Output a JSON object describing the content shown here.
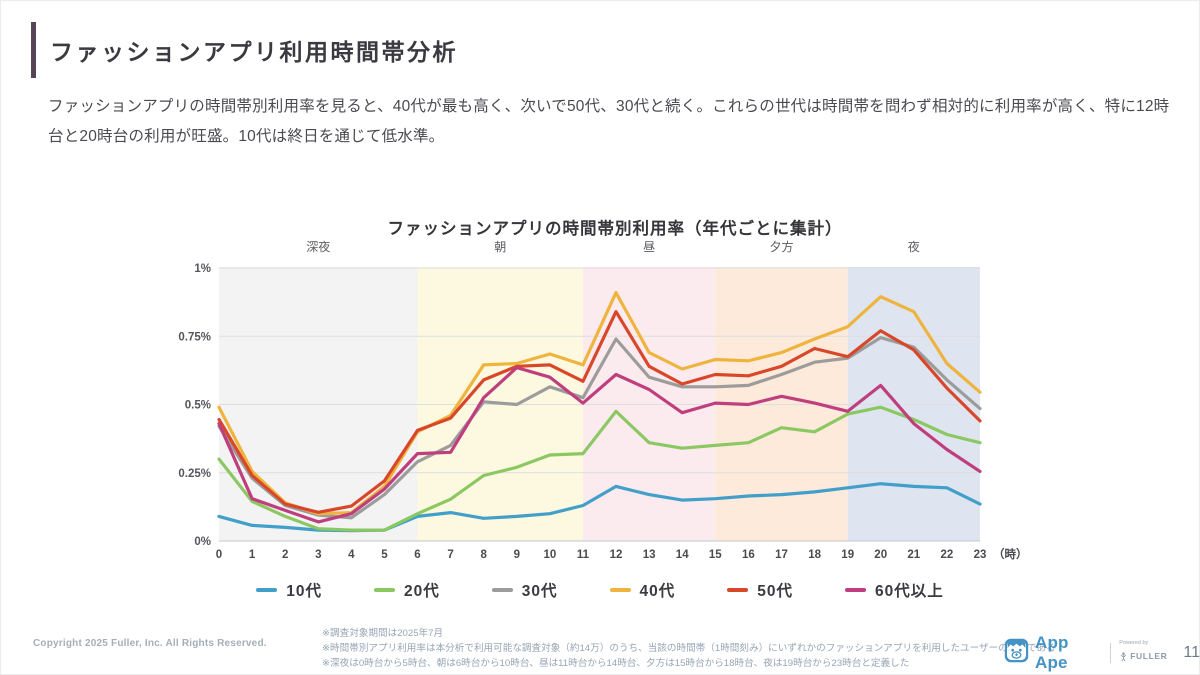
{
  "header": {
    "title": "ファッションアプリ利用時間帯分析",
    "summary": "ファッションアプリの時間帯別利用率を見ると、40代が最も高く、次いで50代、30代と続く。これらの世代は時間帯を問わず相対的に利用率が高く、特に12時台と20時台の利用が旺盛。10代は終日を通じて低水準。"
  },
  "chart_data": {
    "type": "line",
    "title": "ファッションアプリの時間帯別利用率（年代ごとに集計）",
    "x": [
      0,
      1,
      2,
      3,
      4,
      5,
      6,
      7,
      8,
      9,
      10,
      11,
      12,
      13,
      14,
      15,
      16,
      17,
      18,
      19,
      20,
      21,
      22,
      23
    ],
    "x_suffix": "（時）",
    "ylim": [
      0,
      1
    ],
    "yticks": [
      {
        "v": 0,
        "label": "0%"
      },
      {
        "v": 0.25,
        "label": "0.25%"
      },
      {
        "v": 0.5,
        "label": "0.5%"
      },
      {
        "v": 0.75,
        "label": "0.75%"
      },
      {
        "v": 1,
        "label": "1%"
      }
    ],
    "bands": [
      {
        "label": "深夜",
        "start": 0,
        "end": 6,
        "color": "#f3f3f4"
      },
      {
        "label": "朝",
        "start": 6,
        "end": 11,
        "color": "#fdf8e0"
      },
      {
        "label": "昼",
        "start": 11,
        "end": 15,
        "color": "#fcebee"
      },
      {
        "label": "夕方",
        "start": 15,
        "end": 19,
        "color": "#fdeada"
      },
      {
        "label": "夜",
        "start": 19,
        "end": 23,
        "color": "#dee5f1"
      }
    ],
    "series": [
      {
        "name": "10代",
        "color": "#429fc9",
        "values": [
          0.09,
          0.057,
          0.05,
          0.04,
          0.038,
          0.04,
          0.09,
          0.104,
          0.083,
          0.09,
          0.1,
          0.13,
          0.2,
          0.17,
          0.15,
          0.155,
          0.165,
          0.17,
          0.18,
          0.195,
          0.21,
          0.2,
          0.195,
          0.135
        ]
      },
      {
        "name": "20代",
        "color": "#8bc862",
        "values": [
          0.3,
          0.145,
          0.09,
          0.045,
          0.04,
          0.04,
          0.1,
          0.153,
          0.24,
          0.27,
          0.315,
          0.32,
          0.475,
          0.36,
          0.34,
          0.35,
          0.36,
          0.415,
          0.4,
          0.465,
          0.49,
          0.445,
          0.39,
          0.36
        ]
      },
      {
        "name": "30代",
        "color": "#9c9c9c",
        "values": [
          0.42,
          0.23,
          0.13,
          0.095,
          0.085,
          0.17,
          0.29,
          0.35,
          0.51,
          0.5,
          0.565,
          0.525,
          0.74,
          0.6,
          0.565,
          0.565,
          0.57,
          0.61,
          0.655,
          0.67,
          0.745,
          0.71,
          0.59,
          0.485
        ]
      },
      {
        "name": "40代",
        "color": "#eeb43d",
        "values": [
          0.49,
          0.255,
          0.14,
          0.1,
          0.104,
          0.2,
          0.4,
          0.46,
          0.645,
          0.65,
          0.685,
          0.645,
          0.91,
          0.69,
          0.63,
          0.665,
          0.66,
          0.69,
          0.74,
          0.785,
          0.895,
          0.84,
          0.65,
          0.545
        ]
      },
      {
        "name": "50代",
        "color": "#d9472a",
        "values": [
          0.445,
          0.24,
          0.135,
          0.105,
          0.128,
          0.22,
          0.405,
          0.45,
          0.59,
          0.64,
          0.645,
          0.585,
          0.84,
          0.64,
          0.575,
          0.61,
          0.605,
          0.64,
          0.705,
          0.675,
          0.77,
          0.7,
          0.56,
          0.44
        ]
      },
      {
        "name": "60代以上",
        "color": "#bf3f7e",
        "values": [
          0.43,
          0.155,
          0.112,
          0.07,
          0.1,
          0.19,
          0.32,
          0.325,
          0.525,
          0.635,
          0.6,
          0.505,
          0.61,
          0.555,
          0.47,
          0.505,
          0.5,
          0.53,
          0.505,
          0.475,
          0.57,
          0.43,
          0.335,
          0.255
        ]
      }
    ],
    "grid": "horizontal-only",
    "legend_position": "bottom"
  },
  "footer": {
    "copyright": "Copyright 2025 Fuller, Inc. All Rights Reserved.",
    "notes": [
      "※調査対象期間は2025年7月",
      "※時間帯別アプリ利用率は本分析で利用可能な調査対象（約14万）のうち、当該の時間帯（1時間刻み）にいずれかのファッションアプリを利用したユーザーの割合である",
      "※深夜は0時台から5時台、朝は6時台から10時台、昼は11時台から14時台、夕方は15時台から18時台、夜は19時台から23時台と定義した"
    ],
    "brand": {
      "app_ape_label": "App Ape",
      "powered_by": "Powered by",
      "fuller": "FULLER"
    },
    "page_number": "11"
  },
  "icons": {
    "app_ape": "app-ape-monkey-logo",
    "fuller": "fuller-person-mark"
  },
  "colors": {
    "accent_bar": "#584458",
    "brand_blue": "#4592c5",
    "gridline": "#dcdee0",
    "axis_line": "#c4c7ca"
  }
}
